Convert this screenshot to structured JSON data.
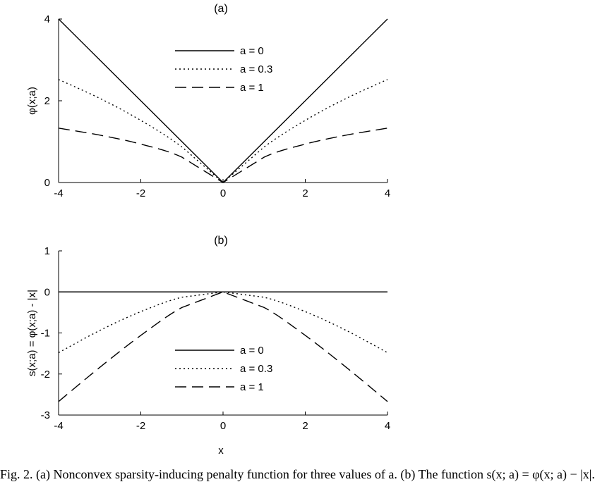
{
  "caption": "Fig. 2. (a) Nonconvex sparsity-inducing penalty function for three values of a. (b) The function s(x; a) = φ(x; a) − |x|.",
  "chart_data": [
    {
      "type": "line",
      "title": "(a)",
      "xlabel": "",
      "ylabel": "φ(x;a)",
      "xlim": [
        -4,
        4
      ],
      "ylim": [
        0,
        4
      ],
      "xticks": [
        -4,
        -2,
        0,
        2,
        4
      ],
      "yticks": [
        0,
        2,
        4
      ],
      "grid": false,
      "legend_position": "upper-center",
      "x": [
        -4,
        -3,
        -2,
        -1,
        0,
        1,
        2,
        3,
        4
      ],
      "series": [
        {
          "name": "a = 0",
          "style": "solid",
          "values": [
            4,
            3,
            2,
            1,
            0,
            1,
            2,
            3,
            4
          ]
        },
        {
          "name": "a = 0.3",
          "style": "dotted",
          "values": [
            2.52,
            2.06,
            1.52,
            0.87,
            0,
            0.87,
            1.52,
            2.06,
            2.52
          ]
        },
        {
          "name": "a = 1",
          "style": "dashed",
          "values": [
            1.33,
            1.16,
            0.94,
            0.62,
            0,
            0.62,
            0.94,
            1.16,
            1.33
          ]
        }
      ]
    },
    {
      "type": "line",
      "title": "(b)",
      "xlabel": "x",
      "ylabel": "s(x;a) = φ(x;a) - |x|",
      "xlim": [
        -4,
        4
      ],
      "ylim": [
        -3,
        1
      ],
      "xticks": [
        -4,
        -2,
        0,
        2,
        4
      ],
      "yticks": [
        -3,
        -2,
        -1,
        0,
        1
      ],
      "grid": false,
      "legend_position": "lower-center",
      "x": [
        -4,
        -3,
        -2,
        -1,
        0,
        1,
        2,
        3,
        4
      ],
      "series": [
        {
          "name": "a = 0",
          "style": "solid",
          "values": [
            0,
            0,
            0,
            0,
            0,
            0,
            0,
            0,
            0
          ]
        },
        {
          "name": "a = 0.3",
          "style": "dotted",
          "values": [
            -1.48,
            -0.94,
            -0.48,
            -0.13,
            0,
            -0.13,
            -0.48,
            -0.94,
            -1.48
          ]
        },
        {
          "name": "a = 1",
          "style": "dashed",
          "values": [
            -2.67,
            -1.84,
            -1.06,
            -0.38,
            0,
            -0.38,
            -1.06,
            -1.84,
            -2.67
          ]
        }
      ]
    }
  ]
}
